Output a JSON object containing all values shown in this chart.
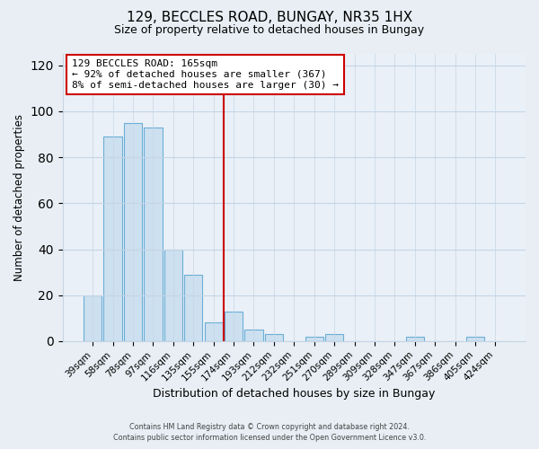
{
  "title": "129, BECCLES ROAD, BUNGAY, NR35 1HX",
  "subtitle": "Size of property relative to detached houses in Bungay",
  "xlabel": "Distribution of detached houses by size in Bungay",
  "ylabel": "Number of detached properties",
  "bar_labels": [
    "39sqm",
    "58sqm",
    "78sqm",
    "97sqm",
    "116sqm",
    "135sqm",
    "155sqm",
    "174sqm",
    "193sqm",
    "212sqm",
    "232sqm",
    "251sqm",
    "270sqm",
    "289sqm",
    "309sqm",
    "328sqm",
    "347sqm",
    "367sqm",
    "386sqm",
    "405sqm",
    "424sqm"
  ],
  "bar_values": [
    20,
    89,
    95,
    93,
    40,
    29,
    8,
    13,
    5,
    3,
    0,
    2,
    3,
    0,
    0,
    0,
    2,
    0,
    0,
    2,
    0
  ],
  "bar_color": "#cce0f0",
  "bar_edge_color": "#6baed6",
  "vline_color": "#cc0000",
  "annotation_line1": "129 BECCLES ROAD: 165sqm",
  "annotation_line2": "← 92% of detached houses are smaller (367)",
  "annotation_line3": "8% of semi-detached houses are larger (30) →",
  "annotation_box_edge": "#cc0000",
  "ylim": [
    0,
    125
  ],
  "yticks": [
    0,
    20,
    40,
    60,
    80,
    100,
    120
  ],
  "footer1": "Contains HM Land Registry data © Crown copyright and database right 2024.",
  "footer2": "Contains public sector information licensed under the Open Government Licence v3.0.",
  "background_color": "#e8eef4",
  "plot_background": "#eaf0f7",
  "grid_color": "#c5d5e5"
}
